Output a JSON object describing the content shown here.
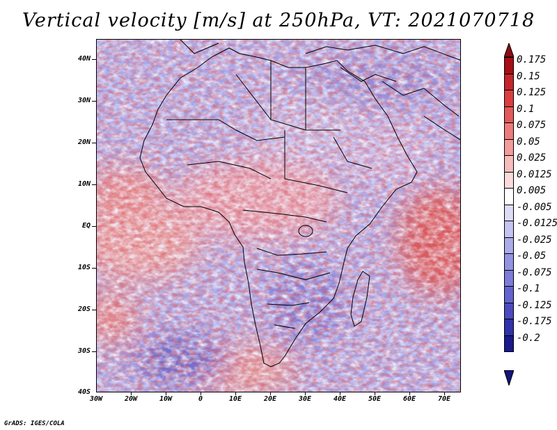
{
  "title": "Vertical velocity [m/s] at 250hPa, VT: 2021070718",
  "footer": "GrADS: IGES/COLA",
  "axes": {
    "lat_labels": [
      "40N",
      "30N",
      "20N",
      "10N",
      "EQ",
      "10S",
      "20S",
      "30S",
      "40S"
    ],
    "lon_labels": [
      "30W",
      "20W",
      "10W",
      "0",
      "10E",
      "20E",
      "30E",
      "40E",
      "50E",
      "60E",
      "70E"
    ],
    "lat_range": [
      -40,
      45
    ],
    "lon_range": [
      -30,
      75
    ]
  },
  "colorbar": {
    "labels": [
      "0.175",
      "0.15",
      "0.125",
      "0.1",
      "0.075",
      "0.05",
      "0.025",
      "0.0125",
      "0.005",
      "-0.005",
      "-0.0125",
      "-0.025",
      "-0.05",
      "-0.075",
      "-0.1",
      "-0.125",
      "-0.175",
      "-0.2"
    ],
    "colors": [
      "#a50f15",
      "#c4252d",
      "#d93f3f",
      "#e35a5a",
      "#ec7c7c",
      "#f39c9c",
      "#f7bcbc",
      "#fbdada",
      "#ffffff",
      "#dcdcf7",
      "#c4c4f2",
      "#ababea",
      "#9393e2",
      "#7c7cd9",
      "#6464cf",
      "#4b4bbf",
      "#3232aa",
      "#1a1a8c"
    ],
    "top_arrow_color": "#8b0d12",
    "bottom_arrow_color": "#14147a"
  }
}
